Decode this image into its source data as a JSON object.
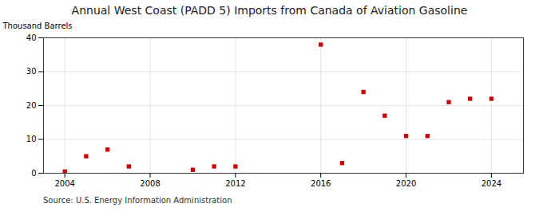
{
  "chart_data": {
    "type": "scatter",
    "title": "Annual West Coast (PADD 5) Imports from Canada of Aviation Gasoline",
    "ylabel": "Thousand Barrels",
    "source": "Source: U.S. Energy Information Administration",
    "x": [
      2004,
      2005,
      2006,
      2007,
      2010,
      2011,
      2012,
      2016,
      2017,
      2018,
      2019,
      2020,
      2021,
      2022,
      2023,
      2024
    ],
    "values": [
      0.5,
      5,
      7,
      2,
      1,
      2,
      2,
      38,
      3,
      24,
      17,
      11,
      11,
      21,
      22,
      22
    ],
    "color": "#cc0000",
    "marker": "square",
    "xlim": [
      2003,
      2025.5
    ],
    "ylim": [
      0,
      40
    ],
    "xticks": [
      2004,
      2008,
      2012,
      2016,
      2020,
      2024
    ],
    "yticks": [
      0,
      10,
      20,
      30,
      40
    ],
    "grid": true
  }
}
